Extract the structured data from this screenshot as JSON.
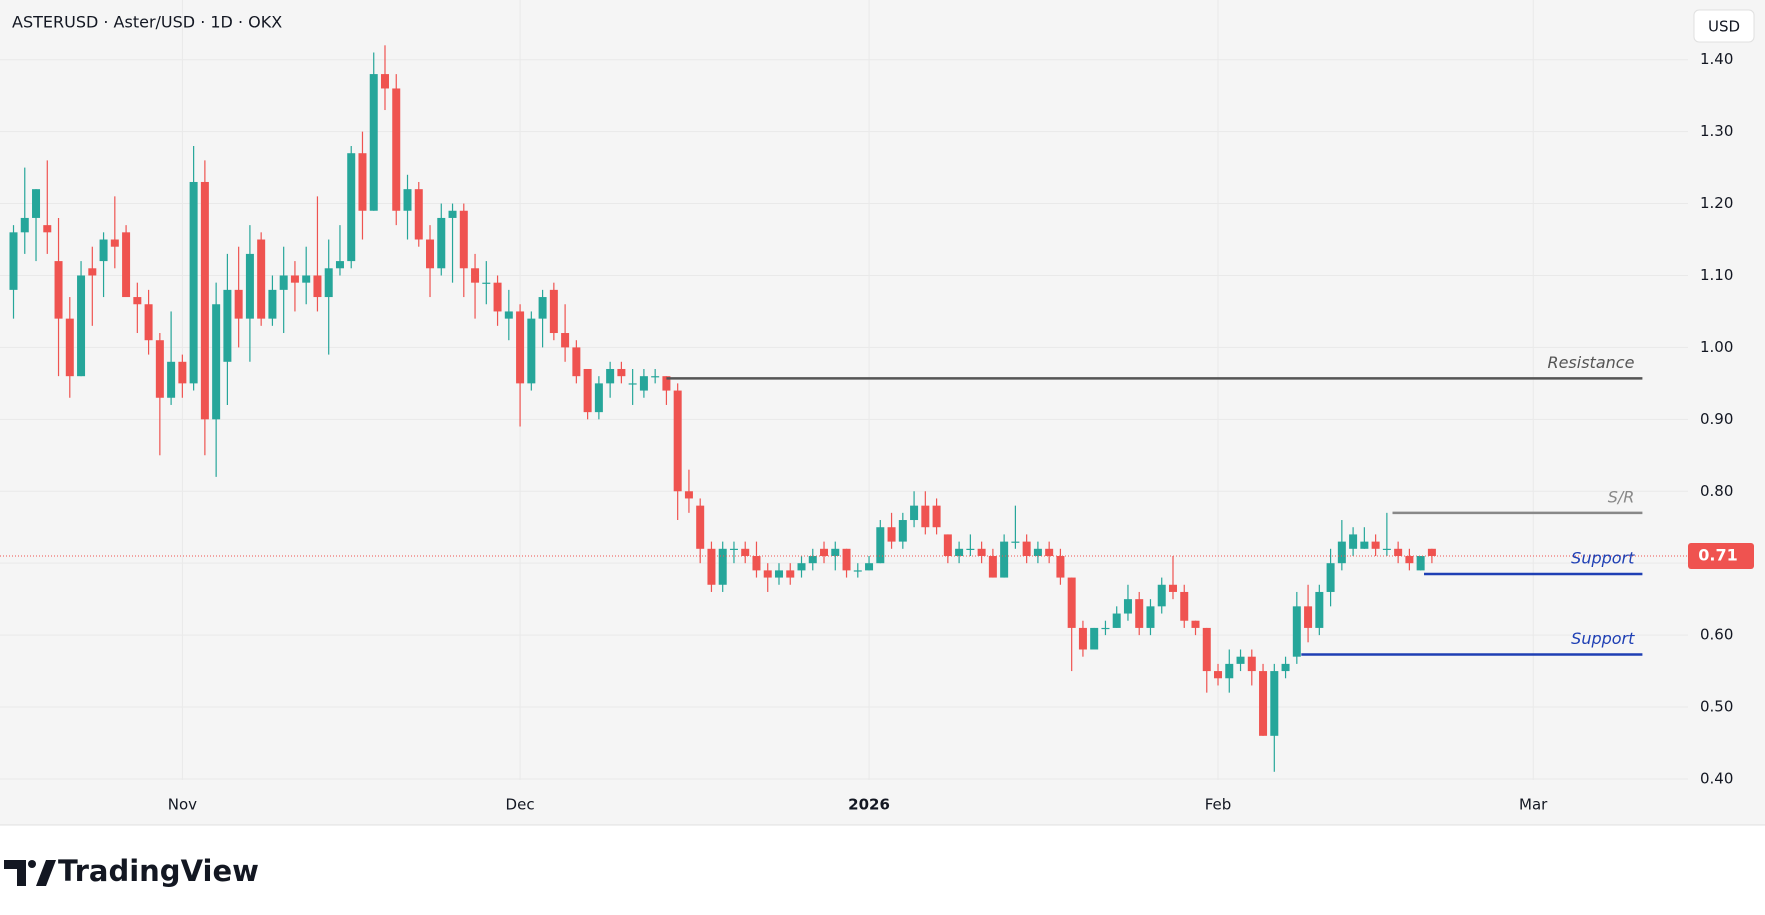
{
  "chart_data": {
    "type": "candlestick",
    "title": "ASTERUSD · Aster/USD · 1D · OKX",
    "currency": "USD",
    "brand": "TradingView",
    "up_color": "#26a69a",
    "down_color": "#ef5350",
    "xlim": [
      -1.2,
      148.75
    ],
    "ylim": [
      0.336,
      1.483
    ],
    "xticks": [
      {
        "value": 15,
        "label": "Nov"
      },
      {
        "value": 45,
        "label": "Dec"
      },
      {
        "value": 76,
        "label": "2026"
      },
      {
        "value": 107,
        "label": "Feb"
      },
      {
        "value": 135,
        "label": "Mar"
      }
    ],
    "yticks": [
      {
        "value": 0.4,
        "label": "0.40"
      },
      {
        "value": 0.5,
        "label": "0.50"
      },
      {
        "value": 0.6,
        "label": "0.60"
      },
      {
        "value": 0.7,
        "label": "0.70"
      },
      {
        "value": 0.8,
        "label": "0.80"
      },
      {
        "value": 0.9,
        "label": "0.90"
      },
      {
        "value": 1.0,
        "label": "1.00"
      },
      {
        "value": 1.1,
        "label": "1.10"
      },
      {
        "value": 1.2,
        "label": "1.20"
      },
      {
        "value": 1.3,
        "label": "1.30"
      },
      {
        "value": 1.4,
        "label": "1.40"
      }
    ],
    "grid": true,
    "last_price": 0.71,
    "candles": [
      [
        1.08,
        1.17,
        1.04,
        1.16
      ],
      [
        1.16,
        1.25,
        1.13,
        1.18
      ],
      [
        1.18,
        1.22,
        1.12,
        1.22
      ],
      [
        1.17,
        1.26,
        1.13,
        1.16
      ],
      [
        1.12,
        1.18,
        0.96,
        1.04
      ],
      [
        1.04,
        1.07,
        0.93,
        0.96
      ],
      [
        0.96,
        1.12,
        0.96,
        1.1
      ],
      [
        1.11,
        1.14,
        1.03,
        1.1
      ],
      [
        1.12,
        1.16,
        1.07,
        1.15
      ],
      [
        1.15,
        1.21,
        1.11,
        1.14
      ],
      [
        1.16,
        1.17,
        1.08,
        1.07
      ],
      [
        1.07,
        1.09,
        1.02,
        1.06
      ],
      [
        1.06,
        1.08,
        0.99,
        1.01
      ],
      [
        1.01,
        1.02,
        0.85,
        0.93
      ],
      [
        0.93,
        1.05,
        0.92,
        0.98
      ],
      [
        0.98,
        0.99,
        0.93,
        0.95
      ],
      [
        0.95,
        1.28,
        0.94,
        1.23
      ],
      [
        1.23,
        1.26,
        0.85,
        0.9
      ],
      [
        0.9,
        1.09,
        0.82,
        1.06
      ],
      [
        0.98,
        1.13,
        0.92,
        1.08
      ],
      [
        1.08,
        1.14,
        1.0,
        1.04
      ],
      [
        1.04,
        1.17,
        0.98,
        1.13
      ],
      [
        1.15,
        1.16,
        1.03,
        1.04
      ],
      [
        1.04,
        1.1,
        1.03,
        1.08
      ],
      [
        1.08,
        1.14,
        1.02,
        1.1
      ],
      [
        1.1,
        1.12,
        1.05,
        1.09
      ],
      [
        1.09,
        1.14,
        1.06,
        1.1
      ],
      [
        1.1,
        1.21,
        1.05,
        1.07
      ],
      [
        1.07,
        1.15,
        0.99,
        1.11
      ],
      [
        1.11,
        1.17,
        1.1,
        1.12
      ],
      [
        1.12,
        1.28,
        1.11,
        1.27
      ],
      [
        1.27,
        1.3,
        1.15,
        1.19
      ],
      [
        1.19,
        1.41,
        1.19,
        1.38
      ],
      [
        1.38,
        1.42,
        1.33,
        1.36
      ],
      [
        1.36,
        1.38,
        1.17,
        1.19
      ],
      [
        1.19,
        1.24,
        1.15,
        1.22
      ],
      [
        1.22,
        1.23,
        1.14,
        1.15
      ],
      [
        1.15,
        1.17,
        1.07,
        1.11
      ],
      [
        1.11,
        1.2,
        1.1,
        1.18
      ],
      [
        1.18,
        1.2,
        1.09,
        1.19
      ],
      [
        1.19,
        1.2,
        1.07,
        1.11
      ],
      [
        1.11,
        1.13,
        1.04,
        1.09
      ],
      [
        1.09,
        1.12,
        1.06,
        1.09
      ],
      [
        1.09,
        1.1,
        1.03,
        1.05
      ],
      [
        1.04,
        1.08,
        1.01,
        1.05
      ],
      [
        1.05,
        1.06,
        0.89,
        0.95
      ],
      [
        0.95,
        1.05,
        0.94,
        1.04
      ],
      [
        1.04,
        1.08,
        1.0,
        1.07
      ],
      [
        1.08,
        1.09,
        1.01,
        1.02
      ],
      [
        1.02,
        1.06,
        0.98,
        1.0
      ],
      [
        1.0,
        1.01,
        0.95,
        0.96
      ],
      [
        0.97,
        0.97,
        0.9,
        0.91
      ],
      [
        0.91,
        0.96,
        0.9,
        0.95
      ],
      [
        0.95,
        0.98,
        0.93,
        0.97
      ],
      [
        0.97,
        0.98,
        0.95,
        0.96
      ],
      [
        0.95,
        0.97,
        0.92,
        0.95
      ],
      [
        0.94,
        0.97,
        0.93,
        0.96
      ],
      [
        0.96,
        0.97,
        0.95,
        0.96
      ],
      [
        0.96,
        0.96,
        0.92,
        0.94
      ],
      [
        0.94,
        0.95,
        0.76,
        0.8
      ],
      [
        0.8,
        0.83,
        0.77,
        0.79
      ],
      [
        0.78,
        0.79,
        0.7,
        0.72
      ],
      [
        0.72,
        0.73,
        0.66,
        0.67
      ],
      [
        0.67,
        0.73,
        0.66,
        0.72
      ],
      [
        0.72,
        0.73,
        0.7,
        0.72
      ],
      [
        0.72,
        0.73,
        0.7,
        0.71
      ],
      [
        0.71,
        0.73,
        0.68,
        0.69
      ],
      [
        0.69,
        0.7,
        0.66,
        0.68
      ],
      [
        0.68,
        0.7,
        0.67,
        0.69
      ],
      [
        0.69,
        0.7,
        0.67,
        0.68
      ],
      [
        0.69,
        0.71,
        0.68,
        0.7
      ],
      [
        0.7,
        0.72,
        0.69,
        0.71
      ],
      [
        0.72,
        0.73,
        0.7,
        0.71
      ],
      [
        0.71,
        0.73,
        0.69,
        0.72
      ],
      [
        0.72,
        0.72,
        0.68,
        0.69
      ],
      [
        0.69,
        0.7,
        0.68,
        0.69
      ],
      [
        0.69,
        0.71,
        0.69,
        0.7
      ],
      [
        0.7,
        0.76,
        0.7,
        0.75
      ],
      [
        0.75,
        0.77,
        0.72,
        0.73
      ],
      [
        0.73,
        0.77,
        0.72,
        0.76
      ],
      [
        0.76,
        0.8,
        0.75,
        0.78
      ],
      [
        0.78,
        0.8,
        0.74,
        0.75
      ],
      [
        0.78,
        0.79,
        0.74,
        0.75
      ],
      [
        0.74,
        0.74,
        0.7,
        0.71
      ],
      [
        0.71,
        0.73,
        0.7,
        0.72
      ],
      [
        0.72,
        0.74,
        0.71,
        0.72
      ],
      [
        0.72,
        0.73,
        0.7,
        0.71
      ],
      [
        0.71,
        0.72,
        0.68,
        0.68
      ],
      [
        0.68,
        0.74,
        0.68,
        0.73
      ],
      [
        0.73,
        0.78,
        0.72,
        0.73
      ],
      [
        0.73,
        0.74,
        0.7,
        0.71
      ],
      [
        0.71,
        0.73,
        0.7,
        0.72
      ],
      [
        0.72,
        0.73,
        0.7,
        0.71
      ],
      [
        0.71,
        0.72,
        0.67,
        0.68
      ],
      [
        0.68,
        0.68,
        0.55,
        0.61
      ],
      [
        0.61,
        0.62,
        0.57,
        0.58
      ],
      [
        0.58,
        0.61,
        0.58,
        0.61
      ],
      [
        0.61,
        0.62,
        0.6,
        0.61
      ],
      [
        0.61,
        0.64,
        0.61,
        0.63
      ],
      [
        0.63,
        0.67,
        0.62,
        0.65
      ],
      [
        0.65,
        0.66,
        0.6,
        0.61
      ],
      [
        0.61,
        0.65,
        0.6,
        0.64
      ],
      [
        0.64,
        0.68,
        0.63,
        0.67
      ],
      [
        0.67,
        0.71,
        0.65,
        0.66
      ],
      [
        0.66,
        0.67,
        0.61,
        0.62
      ],
      [
        0.62,
        0.62,
        0.6,
        0.61
      ],
      [
        0.61,
        0.61,
        0.52,
        0.55
      ],
      [
        0.55,
        0.56,
        0.53,
        0.54
      ],
      [
        0.54,
        0.58,
        0.52,
        0.56
      ],
      [
        0.56,
        0.58,
        0.55,
        0.57
      ],
      [
        0.57,
        0.58,
        0.53,
        0.55
      ],
      [
        0.55,
        0.56,
        0.46,
        0.46
      ],
      [
        0.46,
        0.56,
        0.41,
        0.55
      ],
      [
        0.55,
        0.57,
        0.54,
        0.56
      ],
      [
        0.57,
        0.66,
        0.56,
        0.64
      ],
      [
        0.64,
        0.67,
        0.59,
        0.61
      ],
      [
        0.61,
        0.67,
        0.6,
        0.66
      ],
      [
        0.66,
        0.72,
        0.64,
        0.7
      ],
      [
        0.7,
        0.76,
        0.69,
        0.73
      ],
      [
        0.72,
        0.75,
        0.71,
        0.74
      ],
      [
        0.72,
        0.75,
        0.72,
        0.73
      ],
      [
        0.73,
        0.74,
        0.71,
        0.72
      ],
      [
        0.72,
        0.77,
        0.71,
        0.72
      ],
      [
        0.72,
        0.73,
        0.7,
        0.71
      ],
      [
        0.71,
        0.72,
        0.69,
        0.7
      ],
      [
        0.69,
        0.71,
        0.69,
        0.71
      ],
      [
        0.72,
        0.72,
        0.7,
        0.71
      ]
    ],
    "annotations": [
      {
        "label": "Resistance",
        "value": 0.957,
        "x": [
          58,
          144.7
        ],
        "color": "#555555"
      },
      {
        "label": "S/R",
        "value": 0.77,
        "x": [
          122.5,
          144.7
        ],
        "color": "#888888"
      },
      {
        "label": "Support",
        "value": 0.685,
        "x": [
          125.3,
          144.7
        ],
        "color": "#1e3fb4"
      },
      {
        "label": "Support",
        "value": 0.573,
        "x": [
          114.4,
          144.7
        ],
        "color": "#1e3fb4"
      }
    ]
  }
}
